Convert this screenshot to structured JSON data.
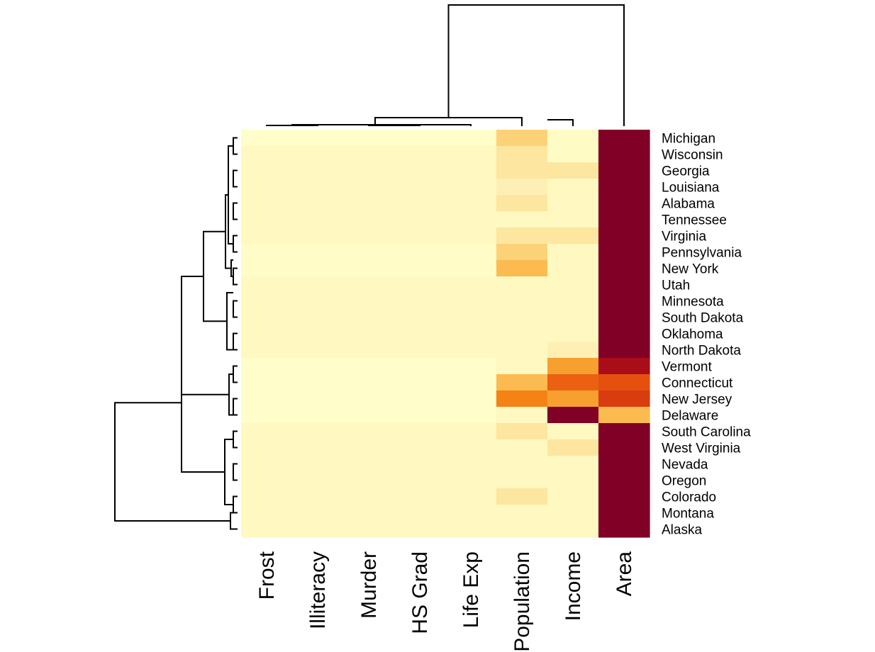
{
  "chart_data": {
    "type": "heatmap",
    "title": "",
    "xlabel": "",
    "ylabel": "",
    "columns": [
      "Frost",
      "Illiteracy",
      "Murder",
      "HS Grad",
      "Life Exp",
      "Population",
      "Income",
      "Area"
    ],
    "rows": [
      "Michigan",
      "Wisconsin",
      "Georgia",
      "Louisiana",
      "Alabama",
      "Tennessee",
      "Virginia",
      "Pennsylvania",
      "New York",
      "Utah",
      "Minnesota",
      "South Dakota",
      "Oklahoma",
      "North Dakota",
      "Vermont",
      "Connecticut",
      "New Jersey",
      "Delaware",
      "South Carolina",
      "West Virginia",
      "Nevada",
      "Oregon",
      "Colorado",
      "Montana",
      "Alaska"
    ],
    "color_scale": {
      "palette": "heat",
      "low_color": "#FFFFCC",
      "high_color": "#800026"
    },
    "column_dendrogram": true,
    "row_dendrogram": true,
    "values": [
      [
        0.01,
        0.01,
        0.01,
        0.01,
        0.01,
        0.25,
        0.03,
        1.0
      ],
      [
        0.05,
        0.05,
        0.05,
        0.05,
        0.05,
        0.15,
        0.03,
        1.0
      ],
      [
        0.05,
        0.05,
        0.05,
        0.05,
        0.05,
        0.15,
        0.15,
        1.0
      ],
      [
        0.05,
        0.05,
        0.05,
        0.05,
        0.05,
        0.1,
        0.05,
        1.0
      ],
      [
        0.05,
        0.05,
        0.05,
        0.05,
        0.05,
        0.15,
        0.05,
        1.0
      ],
      [
        0.05,
        0.05,
        0.05,
        0.05,
        0.05,
        0.05,
        0.05,
        1.0
      ],
      [
        0.05,
        0.05,
        0.05,
        0.05,
        0.05,
        0.15,
        0.15,
        1.0
      ],
      [
        0.02,
        0.02,
        0.02,
        0.02,
        0.02,
        0.25,
        0.05,
        1.0
      ],
      [
        0.02,
        0.02,
        0.02,
        0.02,
        0.02,
        0.35,
        0.05,
        1.0
      ],
      [
        0.05,
        0.05,
        0.05,
        0.05,
        0.05,
        0.05,
        0.05,
        1.0
      ],
      [
        0.05,
        0.05,
        0.05,
        0.05,
        0.05,
        0.05,
        0.05,
        1.0
      ],
      [
        0.05,
        0.05,
        0.05,
        0.05,
        0.05,
        0.05,
        0.05,
        1.0
      ],
      [
        0.05,
        0.05,
        0.05,
        0.05,
        0.05,
        0.05,
        0.05,
        1.0
      ],
      [
        0.05,
        0.05,
        0.05,
        0.05,
        0.05,
        0.05,
        0.1,
        1.0
      ],
      [
        0.01,
        0.01,
        0.01,
        0.01,
        0.01,
        0.05,
        0.45,
        0.9
      ],
      [
        0.01,
        0.01,
        0.01,
        0.01,
        0.01,
        0.35,
        0.65,
        0.7
      ],
      [
        0.01,
        0.01,
        0.01,
        0.01,
        0.01,
        0.55,
        0.45,
        0.75
      ],
      [
        0.01,
        0.01,
        0.01,
        0.01,
        0.01,
        0.05,
        1.0,
        0.35
      ],
      [
        0.05,
        0.05,
        0.05,
        0.05,
        0.05,
        0.15,
        0.05,
        1.0
      ],
      [
        0.05,
        0.05,
        0.05,
        0.05,
        0.05,
        0.05,
        0.15,
        1.0
      ],
      [
        0.05,
        0.05,
        0.05,
        0.05,
        0.05,
        0.05,
        0.05,
        1.0
      ],
      [
        0.05,
        0.05,
        0.05,
        0.05,
        0.05,
        0.05,
        0.05,
        1.0
      ],
      [
        0.05,
        0.05,
        0.05,
        0.05,
        0.05,
        0.15,
        0.05,
        1.0
      ],
      [
        0.05,
        0.05,
        0.05,
        0.05,
        0.05,
        0.05,
        0.05,
        1.0
      ],
      [
        0.05,
        0.05,
        0.05,
        0.05,
        0.05,
        0.05,
        0.05,
        1.0
      ]
    ]
  }
}
